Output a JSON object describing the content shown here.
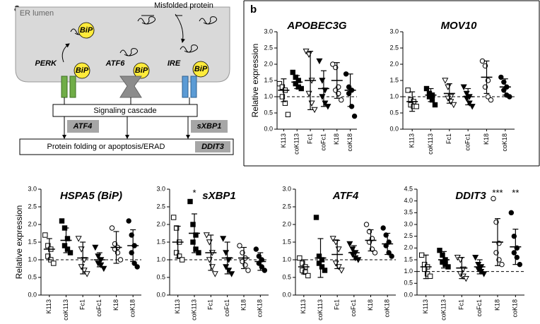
{
  "diagram": {
    "panel_a": "a",
    "panel_b": "b",
    "er_lumen": "ER lumen",
    "misfolded_protein": "Misfolded protein",
    "bip": [
      "BiP",
      "BiP",
      "BiP",
      "BiP"
    ],
    "perk": "PERK",
    "atf6": "ATF6",
    "ire": "IRE",
    "signaling": "Signaling cascade",
    "atf4": "ATF4",
    "sxbp1": "sXBP1",
    "outcome": "Protein folding or apoptosis/ERAD",
    "ddit3": "DDIT3"
  },
  "chart_data": [
    {
      "type": "dot",
      "title": "APOBEC3G",
      "ylabel": "Relative expression",
      "categories": [
        "K113",
        "coK113",
        "Fc1",
        "coFc1",
        "K18",
        "coK18"
      ],
      "markers": [
        "square-open",
        "square",
        "triangle-open",
        "triangle",
        "circle-open",
        "circle"
      ],
      "means": [
        1.2,
        1.45,
        1.5,
        1.25,
        1.5,
        1.2
      ],
      "errors": [
        0.35,
        0.2,
        0.9,
        0.55,
        0.55,
        0.5
      ],
      "points": [
        [
          1.4,
          1.3,
          1.2,
          1.0,
          0.8,
          0.45
        ],
        [
          1.75,
          1.6,
          1.5,
          1.4,
          1.3,
          1.25
        ],
        [
          2.4,
          2.3,
          1.5,
          1.1,
          0.8,
          0.6
        ],
        [
          2.1,
          1.5,
          1.2,
          1.0,
          0.8,
          0.7
        ],
        [
          2.0,
          1.9,
          1.3,
          1.2,
          1.1,
          0.9
        ],
        [
          1.7,
          1.3,
          1.2,
          1.1,
          0.7,
          0.4
        ]
      ],
      "refline": 1,
      "ylim": [
        0,
        3
      ],
      "yticks": [
        {
          "value": 0,
          "label": "0.0"
        },
        {
          "value": 0.5,
          "label": "0.5"
        },
        {
          "value": 1,
          "label": "1.0"
        },
        {
          "value": 1.5,
          "label": "1.5"
        },
        {
          "value": 2,
          "label": "2.0"
        },
        {
          "value": 2.5,
          "label": "2.5"
        },
        {
          "value": 3,
          "label": "3.0"
        }
      ]
    },
    {
      "type": "dot",
      "title": "MOV10",
      "categories": [
        "K113",
        "coK113",
        "Fc1",
        "coFc1",
        "K18",
        "coK18"
      ],
      "markers": [
        "square-open",
        "square",
        "triangle-open",
        "triangle",
        "circle-open",
        "circle"
      ],
      "means": [
        0.85,
        1.05,
        1.1,
        1.0,
        1.6,
        1.3
      ],
      "errors": [
        0.3,
        0.2,
        0.3,
        0.25,
        0.5,
        0.25
      ],
      "points": [
        [
          1.2,
          0.9,
          0.85,
          0.75,
          0.7,
          0.7
        ],
        [
          1.25,
          1.1,
          1.05,
          1.0,
          0.9,
          0.75
        ],
        [
          1.5,
          1.3,
          1.0,
          0.95,
          0.85,
          0.75
        ],
        [
          1.3,
          1.1,
          1.0,
          0.95,
          0.8,
          0.7
        ],
        [
          2.1,
          1.95,
          1.5,
          1.3,
          1.0,
          0.9
        ],
        [
          1.6,
          1.45,
          1.3,
          1.2,
          1.05,
          1.0
        ]
      ],
      "refline": 1,
      "ylim": [
        0,
        3
      ],
      "yticks": [
        {
          "value": 0,
          "label": "0.0"
        },
        {
          "value": 0.5,
          "label": "0.5"
        },
        {
          "value": 1,
          "label": "1.0"
        },
        {
          "value": 1.5,
          "label": "1.5"
        },
        {
          "value": 2,
          "label": "2.0"
        },
        {
          "value": 2.5,
          "label": "2.5"
        },
        {
          "value": 3,
          "label": "3.0"
        }
      ]
    },
    {
      "type": "dot",
      "title": "HSPA5 (BiP)",
      "ylabel": "Relative expression",
      "categories": [
        "K113",
        "coK113",
        "Fc1",
        "coFc1",
        "K18",
        "coK18"
      ],
      "markers": [
        "square-open",
        "square",
        "triangle-open",
        "triangle",
        "circle-open",
        "circle"
      ],
      "means": [
        1.3,
        1.55,
        1.05,
        1.0,
        1.35,
        1.4
      ],
      "errors": [
        0.3,
        0.35,
        0.45,
        0.2,
        0.45,
        0.45
      ],
      "points": [
        [
          1.7,
          1.4,
          1.3,
          1.1,
          1.0,
          0.9
        ],
        [
          2.1,
          1.9,
          1.6,
          1.4,
          1.3,
          1.2
        ],
        [
          1.6,
          1.3,
          1.0,
          0.8,
          0.7,
          0.6
        ],
        [
          1.35,
          1.1,
          1.0,
          0.9,
          0.85,
          0.75
        ],
        [
          1.9,
          1.45,
          1.35,
          1.3,
          1.2,
          1.0
        ],
        [
          2.1,
          1.7,
          1.4,
          1.2,
          0.9,
          0.8
        ]
      ],
      "refline": 1,
      "ylim": [
        0,
        3
      ],
      "yticks": [
        {
          "value": 0,
          "label": "0.0"
        },
        {
          "value": 0.5,
          "label": "0.5"
        },
        {
          "value": 1,
          "label": "1.0"
        },
        {
          "value": 1.5,
          "label": "1.5"
        },
        {
          "value": 2,
          "label": "2.0"
        },
        {
          "value": 2.5,
          "label": "2.5"
        },
        {
          "value": 3,
          "label": "3.0"
        }
      ]
    },
    {
      "type": "dot",
      "title": "sXBP1",
      "categories": [
        "K113",
        "coK113",
        "Fc1",
        "coFc1",
        "K18",
        "coK18"
      ],
      "markers": [
        "square-open",
        "square",
        "triangle-open",
        "triangle",
        "circle-open",
        "circle"
      ],
      "means": [
        1.5,
        1.75,
        1.2,
        1.05,
        1.05,
        0.95
      ],
      "errors": [
        0.45,
        0.55,
        0.5,
        0.45,
        0.3,
        0.25
      ],
      "points": [
        [
          2.2,
          1.9,
          1.5,
          1.2,
          1.1,
          1.0
        ],
        [
          2.65,
          2.0,
          1.7,
          1.5,
          1.3,
          1.2
        ],
        [
          1.7,
          1.5,
          1.2,
          1.0,
          0.8,
          0.6
        ],
        [
          1.6,
          1.2,
          1.0,
          0.8,
          0.7,
          0.6
        ],
        [
          1.4,
          1.2,
          1.05,
          0.95,
          0.85,
          0.7
        ],
        [
          1.3,
          1.1,
          1.0,
          0.9,
          0.8,
          0.7
        ]
      ],
      "significance": [
        null,
        "*",
        null,
        null,
        null,
        null
      ],
      "refline": 1,
      "ylim": [
        0,
        3
      ],
      "yticks": [
        {
          "value": 0,
          "label": "0.0"
        },
        {
          "value": 0.5,
          "label": "0.5"
        },
        {
          "value": 1,
          "label": "1.0"
        },
        {
          "value": 1.5,
          "label": "1.5"
        },
        {
          "value": 2,
          "label": "2.0"
        },
        {
          "value": 2.5,
          "label": "2.5"
        },
        {
          "value": 3,
          "label": "3.0"
        }
      ]
    },
    {
      "type": "dot",
      "title": "ATF4",
      "categories": [
        "K113",
        "coK113",
        "Fc1",
        "coFc1",
        "K18",
        "coK18"
      ],
      "markers": [
        "square-open",
        "square",
        "triangle-open",
        "triangle",
        "circle-open",
        "circle"
      ],
      "means": [
        0.8,
        1.05,
        1.15,
        1.2,
        1.55,
        1.45
      ],
      "errors": [
        0.2,
        0.55,
        0.4,
        0.2,
        0.3,
        0.3
      ],
      "points": [
        [
          1.05,
          0.9,
          0.8,
          0.7,
          0.65,
          0.55
        ],
        [
          2.2,
          1.1,
          1.0,
          0.9,
          0.8,
          0.7
        ],
        [
          1.6,
          1.5,
          1.3,
          0.9,
          0.8,
          0.7
        ],
        [
          1.45,
          1.3,
          1.2,
          1.15,
          1.05,
          1.0
        ],
        [
          2.0,
          1.8,
          1.6,
          1.5,
          1.3,
          1.2
        ],
        [
          1.9,
          1.7,
          1.5,
          1.4,
          1.2,
          1.1
        ]
      ],
      "refline": 1,
      "ylim": [
        0,
        3
      ],
      "yticks": [
        {
          "value": 0,
          "label": "0.0"
        },
        {
          "value": 0.5,
          "label": "0.5"
        },
        {
          "value": 1,
          "label": "1.0"
        },
        {
          "value": 1.5,
          "label": "1.5"
        },
        {
          "value": 2,
          "label": "2.0"
        },
        {
          "value": 2.5,
          "label": "2.5"
        },
        {
          "value": 3,
          "label": "3.0"
        }
      ]
    },
    {
      "type": "dot",
      "title": "DDIT3",
      "categories": [
        "K113",
        "coK113",
        "Fc1",
        "coFc1",
        "K18",
        "coK18"
      ],
      "markers": [
        "square-open",
        "square",
        "triangle-open",
        "triangle",
        "circle-open",
        "circle"
      ],
      "means": [
        1.2,
        1.5,
        1.15,
        1.2,
        2.25,
        2.05
      ],
      "errors": [
        0.5,
        0.35,
        0.45,
        0.3,
        1.0,
        0.75
      ],
      "points": [
        [
          1.7,
          1.3,
          1.2,
          1.1,
          0.9,
          0.8
        ],
        [
          1.9,
          1.7,
          1.5,
          1.4,
          1.3,
          1.2
        ],
        [
          1.6,
          1.5,
          1.1,
          0.9,
          0.8,
          0.7
        ],
        [
          1.6,
          1.3,
          1.2,
          1.1,
          1.0,
          0.9
        ],
        [
          4.1,
          3.1,
          2.2,
          1.8,
          1.5,
          1.3
        ],
        [
          3.5,
          2.5,
          2.0,
          1.8,
          1.6,
          1.3
        ]
      ],
      "significance": [
        null,
        null,
        null,
        null,
        "***",
        "**"
      ],
      "refline": 1,
      "ylim": [
        0,
        4.5
      ],
      "yticks": [
        {
          "value": 0,
          "label": "0.0"
        },
        {
          "value": 0.5,
          "label": "0.5"
        },
        {
          "value": 1,
          "label": "1.0"
        },
        {
          "value": 1.5,
          "label": "1.5"
        },
        {
          "value": 2,
          "label": "2.0"
        },
        {
          "value": 2.5,
          "label": "2.5"
        },
        {
          "value": 3,
          "label": "3.0"
        },
        {
          "value": 3.5,
          "label": "3.5"
        },
        {
          "value": 4,
          "label": "4.0"
        },
        {
          "value": 4.5,
          "label": "4.5"
        }
      ]
    }
  ]
}
